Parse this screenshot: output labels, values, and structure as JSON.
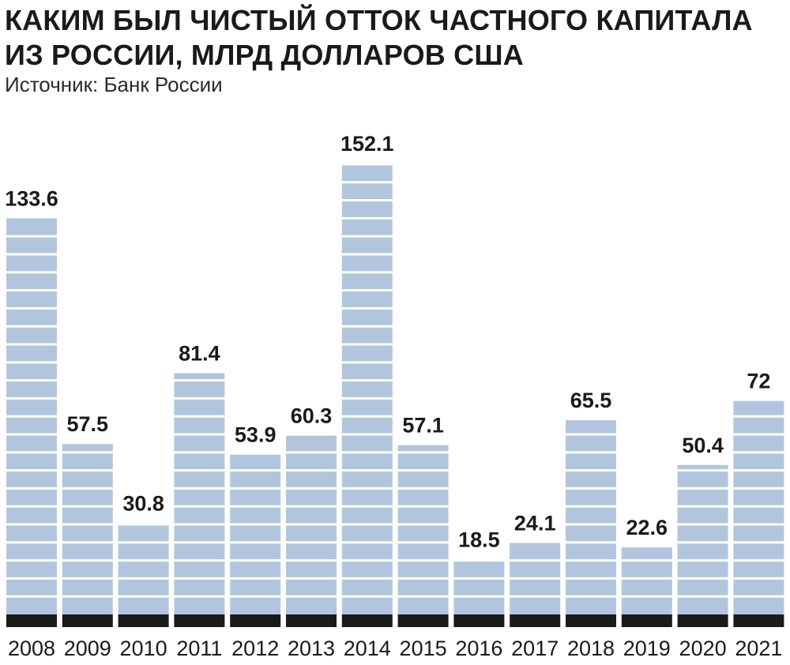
{
  "header": {
    "title_line1": "КАКИМ БЫЛ ЧИСТЫЙ ОТТОК ЧАСТНОГО КАПИТАЛА",
    "title_line2": "ИЗ РОССИИ, МЛРД ДОЛЛАРОВ США",
    "source": "Источник: Банк России"
  },
  "colors": {
    "bar_fill": "#b1c6de",
    "stripe": "#ffffff",
    "baseline": "#1a1a1a",
    "text": "#1a1a1a"
  },
  "chart_data": {
    "type": "bar",
    "title": "КАКИМ БЫЛ ЧИСТЫЙ ОТТОК ЧАСТНОГО КАПИТАЛА ИЗ РОССИИ, МЛРД ДОЛЛАРОВ США",
    "categories": [
      "2008",
      "2009",
      "2010",
      "2011",
      "2012",
      "2013",
      "2014",
      "2015",
      "2016",
      "2017",
      "2018",
      "2019",
      "2020",
      "2021"
    ],
    "values": [
      133.6,
      57.5,
      30.8,
      81.4,
      53.9,
      60.3,
      152.1,
      57.1,
      18.5,
      24.1,
      65.5,
      22.6,
      50.4,
      72
    ],
    "value_labels": [
      "133.6",
      "57.5",
      "30.8",
      "81.4",
      "53.9",
      "60.3",
      "152.1",
      "57.1",
      "18.5",
      "24.1",
      "65.5",
      "22.6",
      "50.4",
      "72"
    ],
    "ylim": [
      0,
      152.1
    ],
    "xlabel": "",
    "ylabel": "",
    "grid": false,
    "legend": "none"
  }
}
